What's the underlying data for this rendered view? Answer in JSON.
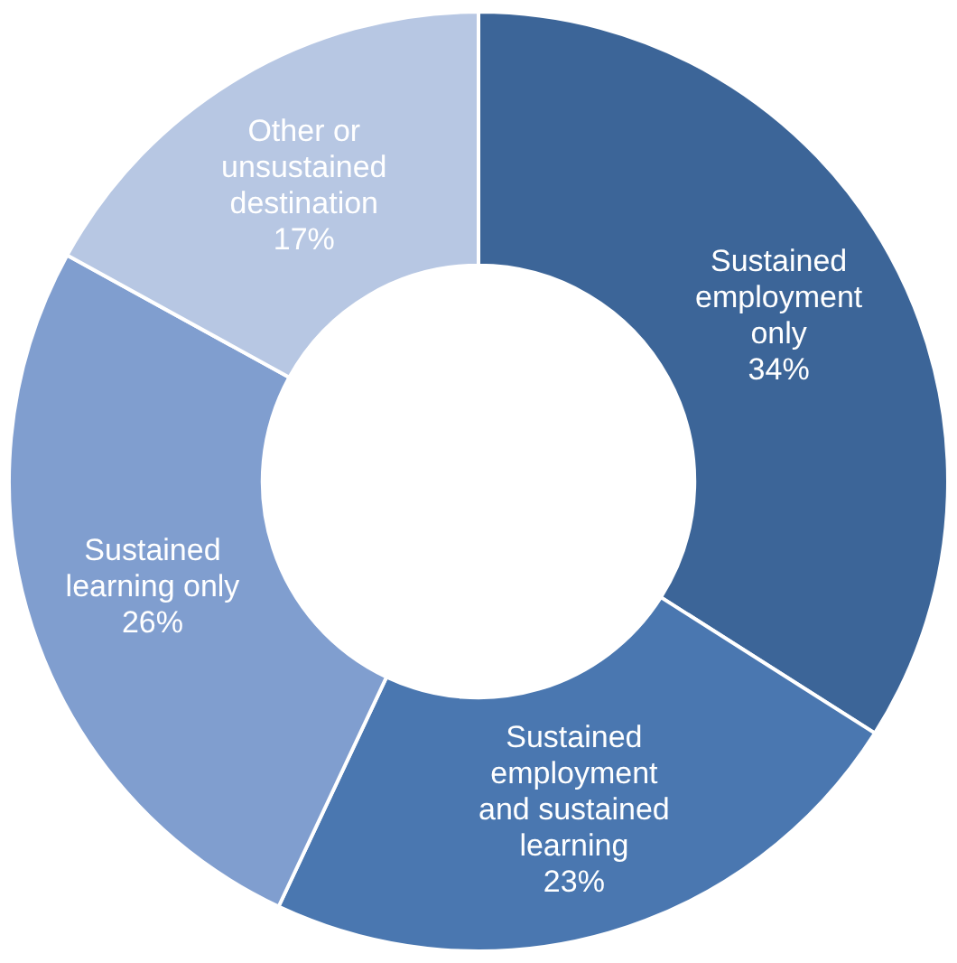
{
  "chart_data": {
    "type": "donut",
    "categories": [
      "Sustained employment only",
      "Sustained employment and sustained learning",
      "Sustained learning only",
      "Other or unsustained destination"
    ],
    "values": [
      34,
      23,
      26,
      17
    ],
    "value_labels": [
      "34%",
      "23%",
      "26%",
      "17%"
    ],
    "colors": [
      "#3c6598",
      "#4a77b0",
      "#809ecf",
      "#b7c7e3"
    ]
  }
}
